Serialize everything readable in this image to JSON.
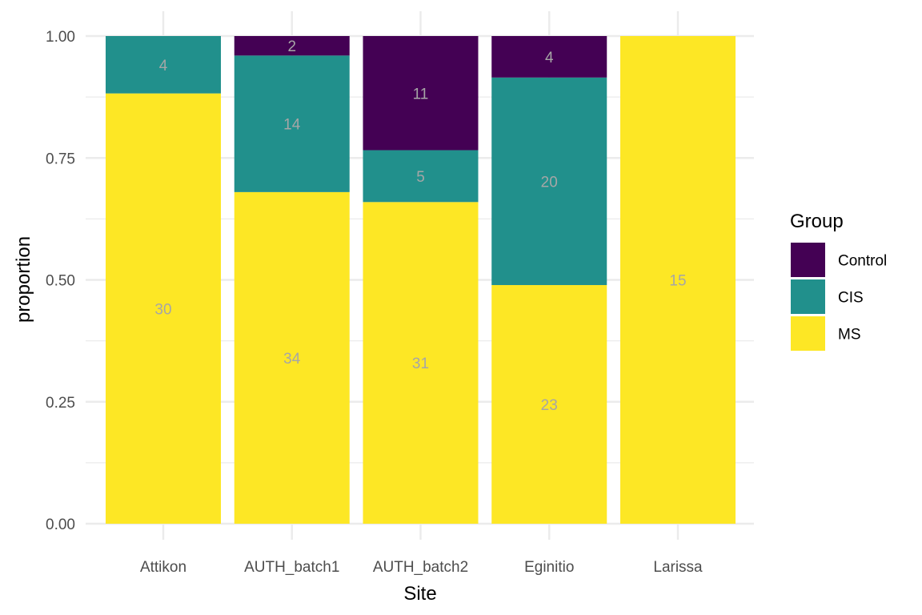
{
  "chart_data": {
    "type": "bar",
    "stacked": true,
    "normalized": true,
    "xlabel": "Site",
    "ylabel": "proportion",
    "ylim": [
      0,
      1
    ],
    "y_ticks": [
      "0.00",
      "0.25",
      "0.50",
      "0.75",
      "1.00"
    ],
    "y_tick_values": [
      0,
      0.25,
      0.5,
      0.75,
      1
    ],
    "categories": [
      "Attikon",
      "AUTH_batch1",
      "AUTH_batch2",
      "Eginitio",
      "Larissa"
    ],
    "series": [
      {
        "name": "Control",
        "color": "#440154",
        "values": [
          0,
          2,
          11,
          4,
          0
        ]
      },
      {
        "name": "CIS",
        "color": "#21908C",
        "values": [
          4,
          14,
          5,
          20,
          0
        ]
      },
      {
        "name": "MS",
        "color": "#FDE725",
        "values": [
          30,
          34,
          31,
          23,
          15
        ]
      }
    ],
    "legend": {
      "title": "Group",
      "position": "right"
    },
    "grid": true
  }
}
